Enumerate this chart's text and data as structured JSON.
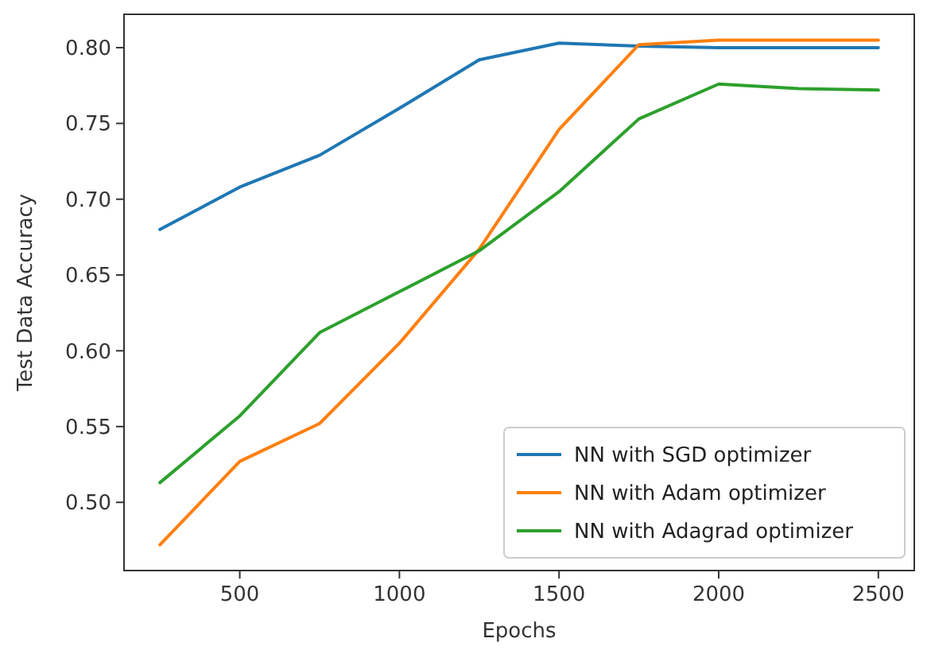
{
  "chart_data": {
    "type": "line",
    "xlabel": "Epochs",
    "ylabel": "Test Data Accuracy",
    "x": [
      250,
      500,
      750,
      1000,
      1250,
      1500,
      1750,
      2000,
      2250,
      2500
    ],
    "series": [
      {
        "name": "NN with SGD optimizer",
        "color": "#1f77b4",
        "values": [
          0.68,
          0.708,
          0.729,
          0.76,
          0.792,
          0.803,
          0.801,
          0.8,
          0.8,
          0.8
        ]
      },
      {
        "name": "NN with Adam optimizer",
        "color": "#ff7f0e",
        "values": [
          0.472,
          0.527,
          0.552,
          0.605,
          0.667,
          0.746,
          0.802,
          0.805,
          0.805,
          0.805
        ]
      },
      {
        "name": "NN with Adagrad optimizer",
        "color": "#2ca02c",
        "values": [
          0.513,
          0.557,
          0.612,
          0.639,
          0.666,
          0.705,
          0.753,
          0.776,
          0.773,
          0.772
        ]
      }
    ],
    "xlim": [
      137.5,
      2612.5
    ],
    "xticks": [
      500,
      1000,
      1500,
      2000,
      2500
    ],
    "ylim": [
      0.455,
      0.822
    ],
    "yticks": [
      {
        "value": 0.5,
        "label": "0.50"
      },
      {
        "value": 0.55,
        "label": "0.55"
      },
      {
        "value": 0.6,
        "label": "0.60"
      },
      {
        "value": 0.65,
        "label": "0.65"
      },
      {
        "value": 0.7,
        "label": "0.70"
      },
      {
        "value": 0.75,
        "label": "0.75"
      },
      {
        "value": 0.8,
        "label": "0.80"
      }
    ],
    "legend": "bottom right",
    "grid": false,
    "marker": "none",
    "line_style": "solid"
  }
}
